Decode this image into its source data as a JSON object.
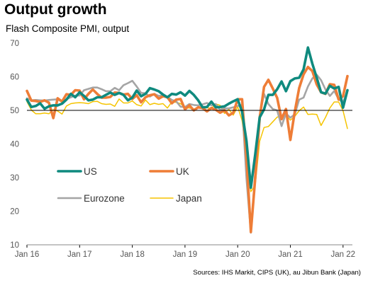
{
  "title": "Output growth",
  "subtitle": "Flash Composite PMI, output",
  "source": "Sources: IHS Markit, CIPS (UK), au Jibun Bank (Japan)",
  "colors": {
    "US": "#0f8a7e",
    "UK": "#ee7d37",
    "Eurozone": "#a5a5a5",
    "Japan": "#f5c400",
    "axis": "#000000"
  },
  "chart_data": {
    "type": "line",
    "title": "Output growth",
    "subtitle": "Flash Composite PMI, output",
    "ylim": [
      10,
      70
    ],
    "yticks": [
      10,
      20,
      30,
      40,
      50,
      60,
      70
    ],
    "xlim": [
      "2016-01",
      "2022-02"
    ],
    "xticks": [
      "Jan 16",
      "Jan 17",
      "Jan 18",
      "Jan 19",
      "Jan 20",
      "Jan 21",
      "Jan 22"
    ],
    "reference_line": 50,
    "grid": false,
    "legend_position": "lower-left inside plot",
    "start": "2016-01",
    "frequency": "monthly",
    "series": [
      {
        "name": "US",
        "values": [
          53.2,
          51.0,
          51.3,
          52.1,
          50.5,
          51.2,
          51.5,
          51.5,
          52.0,
          53.2,
          54.9,
          53.9,
          55.4,
          54.3,
          53.0,
          53.2,
          53.9,
          53.9,
          54.6,
          55.3,
          54.6,
          55.2,
          54.6,
          53.0,
          53.8,
          55.9,
          54.2,
          54.9,
          56.6,
          56.2,
          55.7,
          54.7,
          53.9,
          54.9,
          54.7,
          55.4,
          54.4,
          55.8,
          54.6,
          53.0,
          50.9,
          51.0,
          52.6,
          50.9,
          51.0,
          51.2,
          52.0,
          52.7,
          53.3,
          49.6,
          40.9,
          27.0,
          37.0,
          47.9,
          50.3,
          54.6,
          54.6,
          56.3,
          58.6,
          55.7,
          58.7,
          59.5,
          59.7,
          62.2,
          68.7,
          63.9,
          59.7,
          55.4,
          55.0,
          57.3,
          56.5,
          57.0,
          50.8,
          56.0
        ]
      },
      {
        "name": "UK",
        "values": [
          55.8,
          52.9,
          52.8,
          52.5,
          53.0,
          52.3,
          47.7,
          53.6,
          52.6,
          54.8,
          54.6,
          56.0,
          55.9,
          53.3,
          54.9,
          56.2,
          54.9,
          53.8,
          53.8,
          54.0,
          55.3,
          55.2,
          54.7,
          54.9,
          53.4,
          54.5,
          52.4,
          53.9,
          54.5,
          54.8,
          53.5,
          54.2,
          53.9,
          52.1,
          53.2,
          53.4,
          50.3,
          51.5,
          50.0,
          50.9,
          50.7,
          49.7,
          50.7,
          50.2,
          49.3,
          50.0,
          48.5,
          49.3,
          53.3,
          53.3,
          36.0,
          13.8,
          30.0,
          47.7,
          57.0,
          59.1,
          56.5,
          53.7,
          47.4,
          50.4,
          41.2,
          49.6,
          56.6,
          60.7,
          62.9,
          61.7,
          57.7,
          55.4,
          54.9,
          57.8,
          57.6,
          53.2,
          54.2,
          60.2
        ]
      },
      {
        "name": "Eurozone",
        "values": [
          53.6,
          53.0,
          53.1,
          53.0,
          52.9,
          53.1,
          53.2,
          53.3,
          52.6,
          53.3,
          53.9,
          54.4,
          54.4,
          56.0,
          56.4,
          56.8,
          56.8,
          56.3,
          55.7,
          55.7,
          56.7,
          56.0,
          57.5,
          58.1,
          58.8,
          57.1,
          55.2,
          55.1,
          54.1,
          54.9,
          54.3,
          54.5,
          54.1,
          53.1,
          52.7,
          51.1,
          51.0,
          51.9,
          51.6,
          51.5,
          51.8,
          52.2,
          51.5,
          51.9,
          50.1,
          50.6,
          50.6,
          50.9,
          51.3,
          51.6,
          29.7,
          13.6,
          31.9,
          48.5,
          54.9,
          51.9,
          50.4,
          50.0,
          45.3,
          49.1,
          47.8,
          48.8,
          53.2,
          53.8,
          57.1,
          59.5,
          60.6,
          59.0,
          56.2,
          54.3,
          55.8,
          53.3,
          52.4,
          55.8
        ]
      },
      {
        "name": "Japan",
        "values": [
          52.6,
          50.1,
          49.0,
          49.0,
          49.2,
          49.0,
          50.2,
          49.8,
          48.9,
          51.3,
          52.0,
          52.2,
          52.3,
          52.2,
          52.0,
          52.6,
          52.7,
          52.0,
          51.8,
          51.9,
          51.2,
          53.4,
          52.2,
          52.2,
          52.8,
          51.7,
          51.3,
          53.1,
          51.7,
          52.1,
          51.8,
          52.0,
          50.7,
          52.5,
          52.4,
          52.0,
          50.9,
          50.7,
          50.4,
          50.8,
          50.7,
          50.8,
          50.6,
          51.9,
          51.5,
          49.1,
          50.3,
          48.6,
          51.1,
          47.0,
          36.2,
          25.8,
          27.8,
          40.8,
          44.9,
          45.2,
          46.6,
          48.0,
          48.3,
          48.5,
          47.1,
          48.2,
          49.9,
          51.0,
          48.8,
          48.9,
          48.8,
          45.5,
          47.9,
          50.7,
          52.5,
          52.5,
          49.9,
          44.6
        ]
      }
    ]
  }
}
